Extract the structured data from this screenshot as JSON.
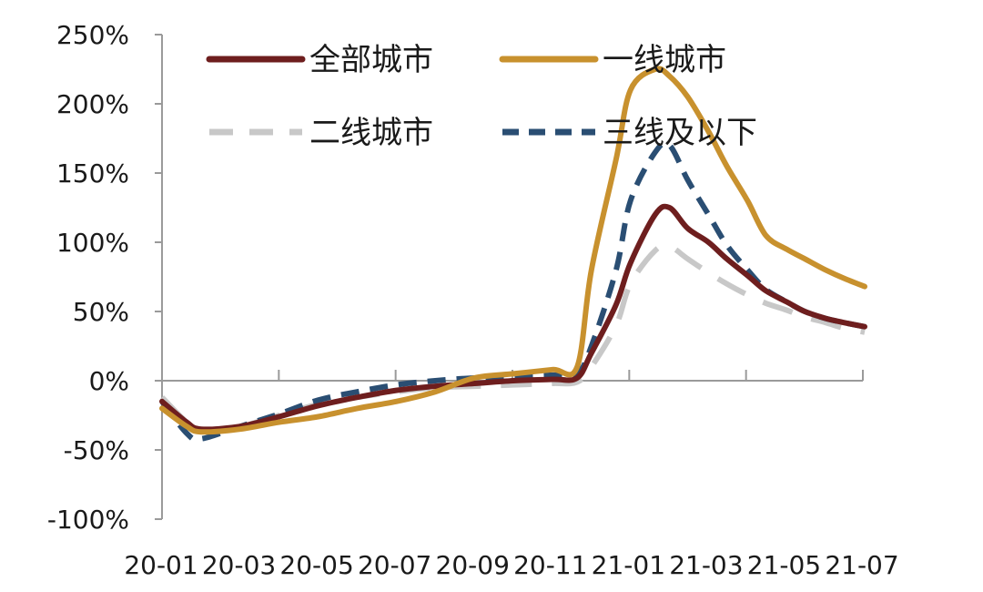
{
  "chart_data": {
    "type": "line",
    "title": "",
    "xlabel": "",
    "ylabel": "",
    "x_ticks": [
      "20-01",
      "20-03",
      "20-05",
      "20-07",
      "20-09",
      "20-11",
      "21-01",
      "21-03",
      "21-05",
      "21-07"
    ],
    "x_range": [
      "2020-01",
      "2021-07"
    ],
    "ylim": [
      -1.0,
      2.5
    ],
    "y_ticks": [
      {
        "value": 2.5,
        "label": "250%"
      },
      {
        "value": 2.0,
        "label": "200%"
      },
      {
        "value": 1.5,
        "label": "150%"
      },
      {
        "value": 1.0,
        "label": "100%"
      },
      {
        "value": 0.5,
        "label": "50%"
      },
      {
        "value": 0.0,
        "label": "0%"
      },
      {
        "value": -0.5,
        "label": "-50%"
      },
      {
        "value": -1.0,
        "label": "-100%"
      }
    ],
    "grid": false,
    "legend_position": "top",
    "series": [
      {
        "name": "全部城市",
        "color": "#6e1e1e",
        "style": "solid",
        "points": [
          [
            "2020-01",
            -0.15
          ],
          [
            "2020-01-20",
            -0.3
          ],
          [
            "2020-02",
            -0.35
          ],
          [
            "2020-03",
            -0.33
          ],
          [
            "2020-04",
            -0.26
          ],
          [
            "2020-05",
            -0.18
          ],
          [
            "2020-06",
            -0.12
          ],
          [
            "2020-07",
            -0.07
          ],
          [
            "2020-08",
            -0.04
          ],
          [
            "2020-09",
            -0.02
          ],
          [
            "2020-10",
            0.0
          ],
          [
            "2020-11",
            0.01
          ],
          [
            "2020-11-20",
            0.02
          ],
          [
            "2020-12",
            0.2
          ],
          [
            "2020-12-20",
            0.55
          ],
          [
            "2021-01",
            0.85
          ],
          [
            "2021-01-20",
            1.2
          ],
          [
            "2021-02",
            1.25
          ],
          [
            "2021-02-15",
            1.1
          ],
          [
            "2021-03",
            1.0
          ],
          [
            "2021-03-15",
            0.88
          ],
          [
            "2021-04",
            0.76
          ],
          [
            "2021-04-15",
            0.65
          ],
          [
            "2021-05",
            0.57
          ],
          [
            "2021-05-15",
            0.5
          ],
          [
            "2021-06",
            0.45
          ],
          [
            "2021-06-15",
            0.42
          ],
          [
            "2021-07",
            0.39
          ]
        ]
      },
      {
        "name": "一线城市",
        "color": "#c8912e",
        "style": "solid",
        "points": [
          [
            "2020-01",
            -0.2
          ],
          [
            "2020-01-20",
            -0.33
          ],
          [
            "2020-02",
            -0.37
          ],
          [
            "2020-03",
            -0.35
          ],
          [
            "2020-04",
            -0.3
          ],
          [
            "2020-05",
            -0.26
          ],
          [
            "2020-06",
            -0.2
          ],
          [
            "2020-07",
            -0.15
          ],
          [
            "2020-08",
            -0.08
          ],
          [
            "2020-09",
            0.02
          ],
          [
            "2020-10",
            0.05
          ],
          [
            "2020-11",
            0.08
          ],
          [
            "2020-11-20",
            0.1
          ],
          [
            "2020-12",
            0.8
          ],
          [
            "2020-12-20",
            1.6
          ],
          [
            "2021-01",
            2.1
          ],
          [
            "2021-01-20",
            2.25
          ],
          [
            "2021-02",
            2.2
          ],
          [
            "2021-02-15",
            2.05
          ],
          [
            "2021-03",
            1.8
          ],
          [
            "2021-03-15",
            1.55
          ],
          [
            "2021-04",
            1.3
          ],
          [
            "2021-04-15",
            1.05
          ],
          [
            "2021-05",
            0.95
          ],
          [
            "2021-05-15",
            0.88
          ],
          [
            "2021-06",
            0.8
          ],
          [
            "2021-06-15",
            0.74
          ],
          [
            "2021-07",
            0.68
          ]
        ]
      },
      {
        "name": "二线城市",
        "color": "#c8c8c8",
        "style": "dashed",
        "points": [
          [
            "2020-01",
            -0.12
          ],
          [
            "2020-01-20",
            -0.3
          ],
          [
            "2020-02",
            -0.36
          ],
          [
            "2020-03",
            -0.33
          ],
          [
            "2020-04",
            -0.25
          ],
          [
            "2020-05",
            -0.17
          ],
          [
            "2020-06",
            -0.12
          ],
          [
            "2020-07",
            -0.08
          ],
          [
            "2020-08",
            -0.05
          ],
          [
            "2020-09",
            -0.04
          ],
          [
            "2020-10",
            -0.03
          ],
          [
            "2020-11",
            -0.02
          ],
          [
            "2020-11-20",
            -0.01
          ],
          [
            "2020-12",
            0.1
          ],
          [
            "2020-12-20",
            0.4
          ],
          [
            "2021-01",
            0.7
          ],
          [
            "2021-01-20",
            0.94
          ],
          [
            "2021-02",
            0.97
          ],
          [
            "2021-02-15",
            0.88
          ],
          [
            "2021-03",
            0.78
          ],
          [
            "2021-03-15",
            0.7
          ],
          [
            "2021-04",
            0.62
          ],
          [
            "2021-04-15",
            0.56
          ],
          [
            "2021-05",
            0.51
          ],
          [
            "2021-05-15",
            0.46
          ],
          [
            "2021-06",
            0.42
          ],
          [
            "2021-06-15",
            0.38
          ],
          [
            "2021-07",
            0.35
          ]
        ]
      },
      {
        "name": "三线及以下",
        "color": "#2a4e73",
        "style": "dashed",
        "points": [
          [
            "2020-01",
            -0.15
          ],
          [
            "2020-01-20",
            -0.38
          ],
          [
            "2020-02",
            -0.42
          ],
          [
            "2020-03",
            -0.33
          ],
          [
            "2020-04",
            -0.24
          ],
          [
            "2020-05",
            -0.14
          ],
          [
            "2020-06",
            -0.08
          ],
          [
            "2020-07",
            -0.03
          ],
          [
            "2020-08",
            0.0
          ],
          [
            "2020-09",
            0.02
          ],
          [
            "2020-10",
            0.03
          ],
          [
            "2020-11",
            0.04
          ],
          [
            "2020-11-20",
            0.05
          ],
          [
            "2020-12",
            0.25
          ],
          [
            "2020-12-20",
            0.8
          ],
          [
            "2021-01",
            1.3
          ],
          [
            "2021-01-20",
            1.65
          ],
          [
            "2021-02",
            1.7
          ],
          [
            "2021-02-15",
            1.45
          ],
          [
            "2021-03",
            1.2
          ],
          [
            "2021-03-15",
            0.98
          ],
          [
            "2021-04",
            0.8
          ],
          [
            "2021-04-15",
            0.66
          ],
          [
            "2021-05",
            0.57
          ],
          [
            "2021-05-15",
            0.5
          ],
          [
            "2021-06",
            0.45
          ],
          [
            "2021-06-15",
            0.42
          ],
          [
            "2021-07",
            0.39
          ]
        ]
      }
    ]
  }
}
